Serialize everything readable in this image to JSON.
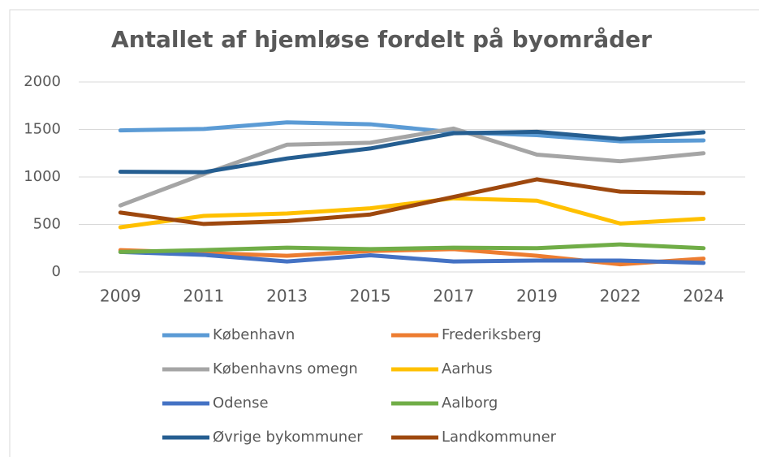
{
  "chart_data": {
    "type": "line",
    "title": "Antallet af hjemløse fordelt på byområder",
    "categories": [
      "2009",
      "2011",
      "2013",
      "2015",
      "2017",
      "2019",
      "2022",
      "2024"
    ],
    "series": [
      {
        "name": "København",
        "color": "#5b9bd5",
        "values": [
          1490,
          1505,
          1575,
          1555,
          1470,
          1440,
          1375,
          1385
        ]
      },
      {
        "name": "Frederiksberg",
        "color": "#ed7d31",
        "values": [
          230,
          200,
          170,
          220,
          240,
          170,
          80,
          140
        ]
      },
      {
        "name": "Københavns omegn",
        "color": "#a5a5a5",
        "values": [
          700,
          1030,
          1340,
          1360,
          1510,
          1235,
          1165,
          1250
        ]
      },
      {
        "name": "Aarhus",
        "color": "#ffc000",
        "values": [
          470,
          590,
          615,
          670,
          775,
          750,
          510,
          560
        ]
      },
      {
        "name": "Odense",
        "color": "#4472c4",
        "values": [
          210,
          180,
          110,
          175,
          110,
          120,
          120,
          95
        ]
      },
      {
        "name": "Aalborg",
        "color": "#70ad47",
        "values": [
          210,
          230,
          255,
          240,
          255,
          250,
          290,
          250
        ]
      },
      {
        "name": "Øvrige bykommuner",
        "color": "#255e91",
        "values": [
          1055,
          1050,
          1195,
          1300,
          1460,
          1475,
          1400,
          1470
        ]
      },
      {
        "name": "Landkommuner",
        "color": "#9e480e",
        "values": [
          625,
          505,
          535,
          605,
          790,
          975,
          845,
          830
        ]
      }
    ],
    "ylim": [
      0,
      2000
    ],
    "yticks": [
      0,
      500,
      1000,
      1500,
      2000
    ],
    "grid": true
  }
}
